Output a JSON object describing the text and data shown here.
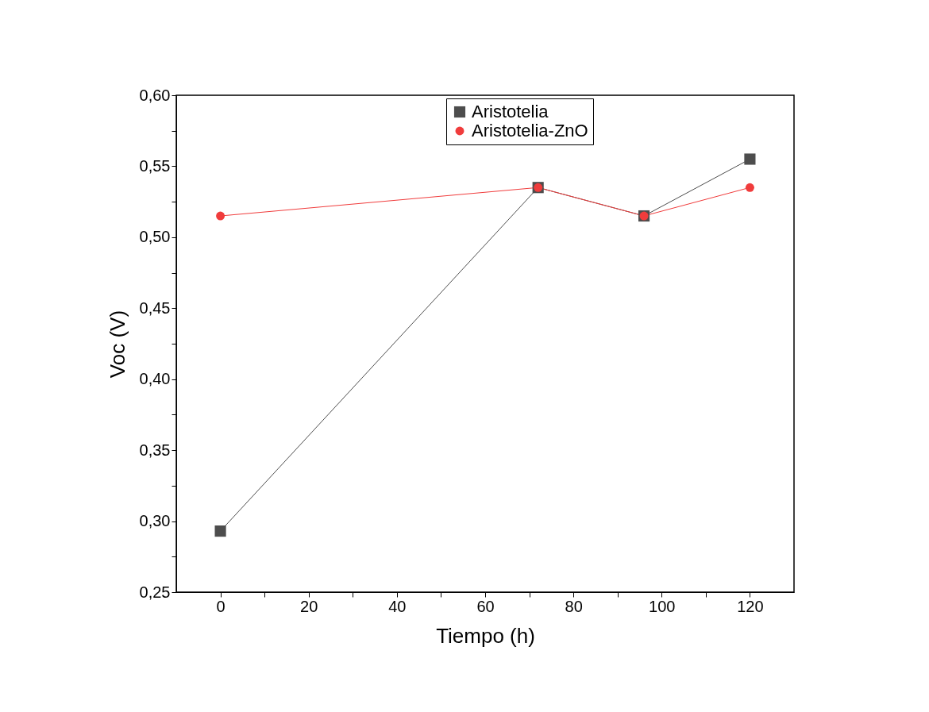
{
  "chart_data": {
    "type": "line",
    "xlabel": "Tiempo (h)",
    "ylabel": "Voc (V)",
    "x": [
      0,
      72,
      96,
      120
    ],
    "series": [
      {
        "name": "Aristotelia",
        "color": "#4d4d4d",
        "marker": "square",
        "values": [
          0.293,
          0.535,
          0.515,
          0.555
        ]
      },
      {
        "name": "Aristotelia-ZnO",
        "color": "#f03c3c",
        "marker": "circle",
        "values": [
          0.515,
          0.535,
          0.515,
          0.535
        ]
      }
    ],
    "xlim": [
      -10,
      130
    ],
    "xticks": [
      0,
      {
        "value": 10,
        "label": null
      },
      20,
      {
        "value": 30,
        "label": null
      },
      40,
      {
        "value": 50,
        "label": null
      },
      60,
      {
        "value": 70,
        "label": null
      },
      80,
      {
        "value": 90,
        "label": null
      },
      100,
      {
        "value": 110,
        "label": null
      },
      120
    ],
    "ylim": [
      0.25,
      0.6
    ],
    "yticks": [
      {
        "value": 0.25,
        "label": "0,25"
      },
      {
        "value": 0.275,
        "label": null
      },
      {
        "value": 0.3,
        "label": "0,30"
      },
      {
        "value": 0.325,
        "label": null
      },
      {
        "value": 0.35,
        "label": "0,35"
      },
      {
        "value": 0.375,
        "label": null
      },
      {
        "value": 0.4,
        "label": "0,40"
      },
      {
        "value": 0.425,
        "label": null
      },
      {
        "value": 0.45,
        "label": "0,45"
      },
      {
        "value": 0.475,
        "label": null
      },
      {
        "value": 0.5,
        "label": "0,50"
      },
      {
        "value": 0.525,
        "label": null
      },
      {
        "value": 0.55,
        "label": "0,55"
      },
      {
        "value": 0.575,
        "label": null
      },
      {
        "value": 0.6,
        "label": "0,60"
      }
    ],
    "grid": false,
    "legend": "top",
    "line_style": "solid"
  }
}
